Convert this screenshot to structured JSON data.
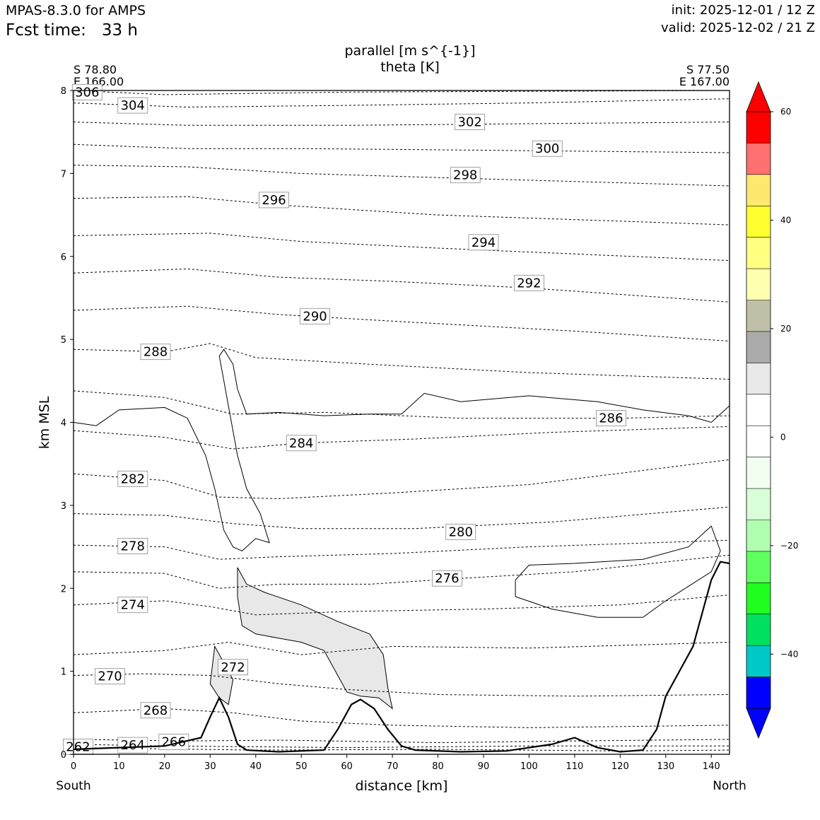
{
  "header": {
    "model": "MPAS-8.3.0 for AMPS",
    "fcst_label": "Fcst time:",
    "fcst_value": "33 h",
    "init": "init: 2025-12-01 / 12 Z",
    "valid": "valid: 2025-12-02 / 21 Z"
  },
  "chart_data": {
    "type": "cross-section",
    "title_line1": "parallel [m s^{-1}]",
    "title_line2": "theta [K]",
    "xlabel": "distance [km]",
    "ylabel": "km MSL",
    "xlim": [
      0,
      144
    ],
    "ylim": [
      0,
      8
    ],
    "x_ticks": [
      0,
      10,
      20,
      30,
      40,
      50,
      60,
      70,
      80,
      90,
      100,
      110,
      120,
      130,
      140
    ],
    "y_ticks": [
      0,
      1,
      2,
      3,
      4,
      5,
      6,
      7,
      8
    ],
    "start_point": {
      "lat": "S 78.80",
      "lon": "E 166.00"
    },
    "end_point": {
      "lat": "S 77.50",
      "lon": "E 167.00"
    },
    "south_label": "South",
    "north_label": "North",
    "terrain": [
      [
        0,
        0.06
      ],
      [
        10,
        0.08
      ],
      [
        20,
        0.1
      ],
      [
        28,
        0.2
      ],
      [
        30,
        0.45
      ],
      [
        32,
        0.68
      ],
      [
        34,
        0.45
      ],
      [
        36,
        0.12
      ],
      [
        38,
        0.05
      ],
      [
        45,
        0.03
      ],
      [
        55,
        0.05
      ],
      [
        58,
        0.3
      ],
      [
        61,
        0.6
      ],
      [
        63,
        0.66
      ],
      [
        66,
        0.55
      ],
      [
        69,
        0.3
      ],
      [
        72,
        0.1
      ],
      [
        75,
        0.05
      ],
      [
        85,
        0.03
      ],
      [
        95,
        0.04
      ],
      [
        105,
        0.12
      ],
      [
        110,
        0.2
      ],
      [
        115,
        0.08
      ],
      [
        120,
        0.03
      ],
      [
        125,
        0.05
      ],
      [
        128,
        0.3
      ],
      [
        130,
        0.7
      ],
      [
        133,
        1.0
      ],
      [
        136,
        1.3
      ],
      [
        138,
        1.7
      ],
      [
        140,
        2.1
      ],
      [
        142,
        2.32
      ],
      [
        144,
        2.3
      ]
    ],
    "theta_isentropes": [
      {
        "value": 262,
        "points": [
          [
            0,
            0.08
          ],
          [
            40,
            0.05
          ],
          [
            80,
            0.06
          ],
          [
            120,
            0.04
          ],
          [
            144,
            0.05
          ]
        ],
        "label_at": [
          1,
          0.09
        ]
      },
      {
        "value": 264,
        "points": [
          [
            0,
            0.12
          ],
          [
            20,
            0.1
          ],
          [
            40,
            0.09
          ],
          [
            60,
            0.08
          ],
          [
            100,
            0.1
          ],
          [
            144,
            0.1
          ]
        ],
        "label_at": [
          13,
          0.11
        ]
      },
      {
        "value": 266,
        "points": [
          [
            0,
            0.18
          ],
          [
            25,
            0.16
          ],
          [
            45,
            0.17
          ],
          [
            80,
            0.14
          ],
          [
            110,
            0.16
          ],
          [
            144,
            0.18
          ]
        ],
        "label_at": [
          22,
          0.15
        ]
      },
      {
        "value": 268,
        "points": [
          [
            0,
            0.5
          ],
          [
            20,
            0.55
          ],
          [
            35,
            0.5
          ],
          [
            50,
            0.4
          ],
          [
            70,
            0.35
          ],
          [
            100,
            0.32
          ],
          [
            144,
            0.35
          ]
        ],
        "label_at": [
          18,
          0.53
        ]
      },
      {
        "value": 270,
        "points": [
          [
            0,
            0.95
          ],
          [
            15,
            0.97
          ],
          [
            30,
            0.95
          ],
          [
            45,
            0.85
          ],
          [
            60,
            0.78
          ],
          [
            80,
            0.72
          ],
          [
            110,
            0.7
          ],
          [
            144,
            0.72
          ]
        ],
        "label_at": [
          8,
          0.94
        ]
      },
      {
        "value": 272,
        "points": [
          [
            0,
            1.2
          ],
          [
            20,
            1.25
          ],
          [
            34,
            1.35
          ],
          [
            50,
            1.2
          ],
          [
            70,
            1.3
          ],
          [
            100,
            1.28
          ],
          [
            144,
            1.35
          ]
        ],
        "label_at": [
          35,
          1.05
        ]
      },
      {
        "value": 274,
        "points": [
          [
            0,
            1.8
          ],
          [
            20,
            1.85
          ],
          [
            30,
            1.78
          ],
          [
            40,
            1.68
          ],
          [
            60,
            1.72
          ],
          [
            90,
            1.75
          ],
          [
            120,
            1.8
          ],
          [
            144,
            1.92
          ]
        ],
        "label_at": [
          13,
          1.8
        ]
      },
      {
        "value": 276,
        "points": [
          [
            0,
            2.2
          ],
          [
            20,
            2.18
          ],
          [
            32,
            2.0
          ],
          [
            45,
            2.05
          ],
          [
            65,
            2.05
          ],
          [
            85,
            2.12
          ],
          [
            110,
            2.2
          ],
          [
            144,
            2.4
          ]
        ],
        "label_at": [
          82,
          2.12
        ]
      },
      {
        "value": 278,
        "points": [
          [
            0,
            2.52
          ],
          [
            20,
            2.5
          ],
          [
            32,
            2.35
          ],
          [
            45,
            2.38
          ],
          [
            70,
            2.42
          ],
          [
            100,
            2.5
          ],
          [
            144,
            2.58
          ]
        ],
        "label_at": [
          13,
          2.51
        ]
      },
      {
        "value": 280,
        "points": [
          [
            0,
            2.9
          ],
          [
            20,
            2.88
          ],
          [
            35,
            2.78
          ],
          [
            50,
            2.72
          ],
          [
            75,
            2.72
          ],
          [
            105,
            2.8
          ],
          [
            144,
            2.98
          ]
        ],
        "label_at": [
          85,
          2.68
        ]
      },
      {
        "value": 282,
        "points": [
          [
            0,
            3.38
          ],
          [
            20,
            3.3
          ],
          [
            32,
            3.1
          ],
          [
            45,
            3.08
          ],
          [
            70,
            3.15
          ],
          [
            100,
            3.25
          ],
          [
            144,
            3.55
          ]
        ],
        "label_at": [
          13,
          3.32
        ]
      },
      {
        "value": 284,
        "points": [
          [
            0,
            3.9
          ],
          [
            20,
            3.82
          ],
          [
            35,
            3.68
          ],
          [
            50,
            3.75
          ],
          [
            75,
            3.8
          ],
          [
            105,
            3.88
          ],
          [
            144,
            3.95
          ]
        ],
        "label_at": [
          50,
          3.75
        ]
      },
      {
        "value": 286,
        "points": [
          [
            0,
            4.38
          ],
          [
            20,
            4.3
          ],
          [
            35,
            4.1
          ],
          [
            55,
            4.12
          ],
          [
            85,
            4.05
          ],
          [
            120,
            4.05
          ],
          [
            144,
            4.08
          ]
        ],
        "label_at": [
          118,
          4.05
        ]
      },
      {
        "value": 288,
        "points": [
          [
            0,
            4.88
          ],
          [
            20,
            4.85
          ],
          [
            30,
            4.95
          ],
          [
            40,
            4.78
          ],
          [
            65,
            4.7
          ],
          [
            100,
            4.6
          ],
          [
            144,
            4.52
          ]
        ],
        "label_at": [
          18,
          4.85
        ]
      },
      {
        "value": 290,
        "points": [
          [
            0,
            5.35
          ],
          [
            25,
            5.4
          ],
          [
            45,
            5.3
          ],
          [
            70,
            5.22
          ],
          [
            110,
            5.1
          ],
          [
            144,
            4.98
          ]
        ],
        "label_at": [
          53,
          5.28
        ]
      },
      {
        "value": 292,
        "points": [
          [
            0,
            5.8
          ],
          [
            25,
            5.85
          ],
          [
            45,
            5.75
          ],
          [
            70,
            5.7
          ],
          [
            100,
            5.62
          ],
          [
            144,
            5.45
          ]
        ],
        "label_at": [
          100,
          5.68
        ]
      },
      {
        "value": 294,
        "points": [
          [
            0,
            6.25
          ],
          [
            30,
            6.28
          ],
          [
            50,
            6.18
          ],
          [
            80,
            6.1
          ],
          [
            144,
            5.95
          ]
        ],
        "label_at": [
          90,
          6.17
        ]
      },
      {
        "value": 296,
        "points": [
          [
            0,
            6.7
          ],
          [
            25,
            6.72
          ],
          [
            45,
            6.62
          ],
          [
            80,
            6.5
          ],
          [
            144,
            6.38
          ]
        ],
        "label_at": [
          44,
          6.68
        ]
      },
      {
        "value": 298,
        "points": [
          [
            0,
            7.1
          ],
          [
            25,
            7.08
          ],
          [
            50,
            7.0
          ],
          [
            80,
            6.95
          ],
          [
            144,
            6.85
          ]
        ],
        "label_at": [
          86,
          6.98
        ]
      },
      {
        "value": 300,
        "points": [
          [
            0,
            7.35
          ],
          [
            25,
            7.3
          ],
          [
            50,
            7.3
          ],
          [
            90,
            7.28
          ],
          [
            144,
            7.25
          ]
        ],
        "label_at": [
          104,
          7.3
        ]
      },
      {
        "value": 302,
        "points": [
          [
            0,
            7.62
          ],
          [
            25,
            7.58
          ],
          [
            60,
            7.58
          ],
          [
            100,
            7.6
          ],
          [
            144,
            7.62
          ]
        ],
        "label_at": [
          87,
          7.62
        ]
      },
      {
        "value": 304,
        "points": [
          [
            0,
            7.85
          ],
          [
            25,
            7.8
          ],
          [
            60,
            7.82
          ],
          [
            100,
            7.85
          ],
          [
            144,
            7.9
          ]
        ],
        "label_at": [
          13,
          7.82
        ]
      },
      {
        "value": 306,
        "points": [
          [
            0,
            8.0
          ],
          [
            20,
            7.95
          ],
          [
            60,
            7.98
          ],
          [
            144,
            8.0
          ]
        ],
        "label_at": [
          3,
          7.98
        ]
      }
    ],
    "parallel_zero_contour": [
      [
        0,
        4.0
      ],
      [
        5,
        3.96
      ],
      [
        10,
        4.15
      ],
      [
        20,
        4.18
      ],
      [
        25,
        4.05
      ],
      [
        29,
        3.6
      ],
      [
        31,
        3.2
      ],
      [
        32,
        2.95
      ],
      [
        33,
        2.7
      ],
      [
        35,
        2.5
      ],
      [
        37,
        2.45
      ],
      [
        40,
        2.6
      ],
      [
        43,
        2.55
      ],
      [
        41,
        2.9
      ],
      [
        38,
        3.2
      ],
      [
        36,
        3.6
      ],
      [
        34,
        4.2
      ],
      [
        33,
        4.5
      ],
      [
        32,
        4.8
      ],
      [
        33,
        4.88
      ],
      [
        35,
        4.7
      ],
      [
        36,
        4.4
      ],
      [
        38,
        4.1
      ],
      [
        45,
        4.12
      ],
      [
        55,
        4.08
      ],
      [
        65,
        4.1
      ],
      [
        72,
        4.1
      ],
      [
        77,
        4.35
      ],
      [
        85,
        4.25
      ],
      [
        100,
        4.32
      ],
      [
        115,
        4.25
      ],
      [
        125,
        4.15
      ],
      [
        135,
        4.08
      ],
      [
        140,
        4.0
      ],
      [
        144,
        4.2
      ]
    ],
    "parallel_lower_contour": [
      [
        97,
        2.1
      ],
      [
        100,
        2.28
      ],
      [
        110,
        2.3
      ],
      [
        125,
        2.35
      ],
      [
        135,
        2.5
      ],
      [
        140,
        2.75
      ],
      [
        142,
        2.45
      ],
      [
        140,
        2.2
      ],
      [
        130,
        1.85
      ],
      [
        125,
        1.65
      ],
      [
        115,
        1.65
      ],
      [
        105,
        1.75
      ],
      [
        97,
        1.9
      ],
      [
        97,
        2.1
      ]
    ],
    "parallel_shaded_region": [
      [
        36,
        2.25
      ],
      [
        38,
        2.05
      ],
      [
        42,
        1.95
      ],
      [
        50,
        1.8
      ],
      [
        58,
        1.6
      ],
      [
        65,
        1.45
      ],
      [
        68,
        1.2
      ],
      [
        69,
        0.8
      ],
      [
        70,
        0.55
      ],
      [
        67,
        0.68
      ],
      [
        63,
        0.7
      ],
      [
        60,
        0.75
      ],
      [
        58,
        0.95
      ],
      [
        55,
        1.25
      ],
      [
        50,
        1.35
      ],
      [
        45,
        1.4
      ],
      [
        40,
        1.45
      ],
      [
        37,
        1.55
      ],
      [
        36,
        1.9
      ],
      [
        36,
        2.25
      ]
    ],
    "parallel_shaded_region_small": [
      [
        31,
        1.3
      ],
      [
        33,
        1.1
      ],
      [
        35,
        0.9
      ],
      [
        34,
        0.6
      ],
      [
        32,
        0.68
      ],
      [
        30,
        0.85
      ],
      [
        31,
        1.3
      ]
    ],
    "colorbar": {
      "min": -50,
      "max": 60,
      "step": 5,
      "ticks": [
        60,
        40,
        20,
        0,
        -20,
        -40
      ],
      "tick_labels": [
        "60",
        "40",
        "20",
        "0",
        "−20",
        "−40"
      ],
      "over_color": "#ff0000",
      "under_color": "#0000ff",
      "colors_top_to_bottom": [
        "#ff0000",
        "#ff7070",
        "#ffe870",
        "#ffff30",
        "#ffff80",
        "#ffffb0",
        "#c0c0a8",
        "#aaaaaa",
        "#e8e8e8",
        "#ffffff",
        "#ffffff",
        "#f0fff0",
        "#d8ffd8",
        "#b0ffb0",
        "#60ff60",
        "#20ff20",
        "#00e060",
        "#00c8c8",
        "#0000ff"
      ]
    }
  }
}
